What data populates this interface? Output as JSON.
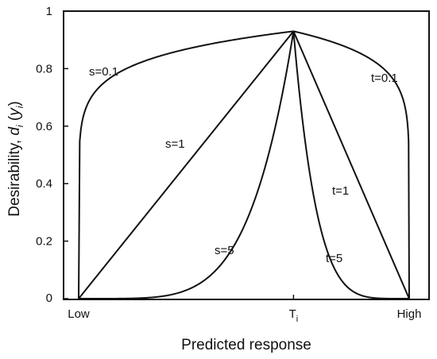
{
  "chart_data": {
    "type": "line",
    "title": "",
    "xlabel": "Predicted response",
    "ylabel": "Desirability, d_i (y_i)",
    "ylabel_parts": {
      "prefix": "Desirability, ",
      "d": "d",
      "d_sub": "i",
      "open": " (",
      "y": "y",
      "y_sub": "i",
      "close": ")"
    },
    "xlim": [
      0,
      1
    ],
    "ylim": [
      0,
      1
    ],
    "grid": false,
    "x_ticks": [
      {
        "value": 0,
        "label": "Low",
        "sub": ""
      },
      {
        "value": 0.65,
        "label": "T",
        "sub": "i"
      },
      {
        "value": 1,
        "label": "High",
        "sub": ""
      }
    ],
    "y_ticks": [
      {
        "value": 0,
        "label": "0"
      },
      {
        "value": 0.2,
        "label": "0.2"
      },
      {
        "value": 0.4,
        "label": "0.4"
      },
      {
        "value": 0.6,
        "label": "0.6"
      },
      {
        "value": 0.8,
        "label": "0.8"
      },
      {
        "value": 1,
        "label": "1"
      }
    ],
    "target": {
      "x": 0.65,
      "y": 0.93
    },
    "series": [
      {
        "name": "s=0.1",
        "side": "left",
        "exponent": 0.1
      },
      {
        "name": "s=1",
        "side": "left",
        "exponent": 1
      },
      {
        "name": "s=5",
        "side": "left",
        "exponent": 5
      },
      {
        "name": "t=0.1",
        "side": "right",
        "exponent": 0.1
      },
      {
        "name": "t=1",
        "side": "right",
        "exponent": 1
      },
      {
        "name": "t=5",
        "side": "right",
        "exponent": 5
      }
    ]
  }
}
